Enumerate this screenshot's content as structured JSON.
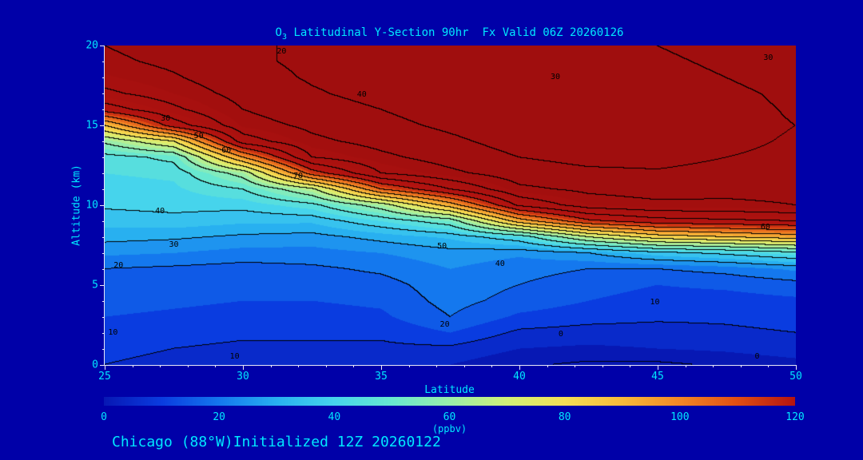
{
  "title": {
    "pre": "O",
    "sub": "3",
    "rest": " Latitudinal Y-Section 90hr  Fx Valid 06Z 20260126"
  },
  "footer": {
    "text": "Chicago (88°W)Initialized 12Z 20260122"
  },
  "axes": {
    "x_label": "Latitude",
    "y_label": "Altitude (km)",
    "x_ticks": [
      {
        "v": 25,
        "label": "25"
      },
      {
        "v": 30,
        "label": "30"
      },
      {
        "v": 35,
        "label": "35"
      },
      {
        "v": 40,
        "label": "40"
      },
      {
        "v": 45,
        "label": "45"
      },
      {
        "v": 50,
        "label": "50"
      }
    ],
    "y_ticks": [
      {
        "v": 0,
        "label": "0"
      },
      {
        "v": 5,
        "label": "5"
      },
      {
        "v": 10,
        "label": "10"
      },
      {
        "v": 15,
        "label": "15"
      },
      {
        "v": 20,
        "label": "20"
      }
    ]
  },
  "colorbar": {
    "min": 0,
    "max": 120,
    "unit": "(ppbv)",
    "ticks": [
      {
        "v": 0,
        "label": "0"
      },
      {
        "v": 20,
        "label": "20"
      },
      {
        "v": 40,
        "label": "40"
      },
      {
        "v": 60,
        "label": "60"
      },
      {
        "v": 80,
        "label": "80"
      },
      {
        "v": 100,
        "label": "100"
      },
      {
        "v": 120,
        "label": "120"
      }
    ]
  },
  "chart_data": {
    "type": "heatmap",
    "title": "O3 Latitudinal Y-Section 90hr Fx Valid 06Z 20260126",
    "xlabel": "Latitude",
    "ylabel": "Altitude (km)",
    "units": "ppbv",
    "x_range": [
      25,
      50
    ],
    "y_range": [
      0,
      20
    ],
    "contour_interval": 10,
    "x_lats": [
      25,
      27.5,
      30,
      32.5,
      35,
      37.5,
      40,
      42.5,
      45,
      47.5,
      50
    ],
    "y_alts": [
      0,
      1,
      2,
      3,
      4,
      5,
      6,
      7,
      8,
      9,
      10,
      11,
      12,
      13,
      14,
      15,
      16,
      17,
      18,
      19,
      20
    ],
    "values": [
      [
        10,
        11,
        13,
        15,
        17,
        18,
        20,
        26,
        32,
        37,
        41,
        43,
        45,
        47,
        62,
        90,
        125,
        138,
        144,
        148,
        150
      ],
      [
        9,
        10,
        12,
        14,
        16,
        17,
        19,
        25,
        31,
        38,
        42,
        44,
        46,
        52,
        80,
        125,
        138,
        145,
        149,
        152,
        154
      ],
      [
        8,
        9,
        11,
        13,
        15,
        16,
        18,
        23,
        29,
        36,
        42,
        50,
        64,
        100,
        135,
        146,
        150,
        153,
        156,
        158,
        158
      ],
      [
        8,
        9,
        11,
        13,
        15,
        17,
        19,
        23,
        28,
        36,
        48,
        68,
        115,
        140,
        148,
        152,
        156,
        159,
        161,
        162,
        162
      ],
      [
        7,
        9,
        11,
        14,
        16,
        18,
        21,
        25,
        32,
        45,
        65,
        110,
        140,
        148,
        153,
        157,
        160,
        163,
        164,
        165,
        164
      ],
      [
        5,
        9,
        15,
        20,
        22,
        23,
        25,
        28,
        36,
        55,
        95,
        130,
        148,
        154,
        158,
        162,
        165,
        167,
        167,
        166,
        165
      ],
      [
        1,
        5,
        9,
        14,
        18,
        20,
        22,
        26,
        45,
        95,
        132,
        148,
        155,
        160,
        164,
        167,
        169,
        170,
        169,
        167,
        166
      ],
      [
        -1,
        4,
        8,
        12,
        15,
        17,
        20,
        30,
        70,
        118,
        145,
        152,
        158,
        163,
        167,
        169,
        170,
        169,
        168,
        166,
        164
      ],
      [
        -1,
        5,
        8,
        11,
        13,
        15,
        20,
        38,
        85,
        126,
        148,
        154,
        159,
        163,
        166,
        167,
        167,
        166,
        164,
        162,
        160
      ],
      [
        1,
        6,
        9,
        11,
        13,
        16,
        22,
        42,
        90,
        128,
        148,
        153,
        157,
        160,
        162,
        163,
        163,
        162,
        160,
        158,
        156
      ],
      [
        3,
        8,
        10,
        12,
        14,
        18,
        26,
        48,
        95,
        130,
        150,
        153,
        156,
        158,
        159,
        160,
        159,
        158,
        156,
        154,
        152
      ]
    ],
    "colormap": [
      [
        0,
        "#0718b4"
      ],
      [
        10,
        "#0a3ce0"
      ],
      [
        20,
        "#1478ee"
      ],
      [
        30,
        "#28b0f0"
      ],
      [
        40,
        "#46d4ec"
      ],
      [
        50,
        "#68e8d0"
      ],
      [
        60,
        "#9aeeaa"
      ],
      [
        70,
        "#d2f078"
      ],
      [
        80,
        "#f4e056"
      ],
      [
        90,
        "#f8ba3a"
      ],
      [
        100,
        "#f28826"
      ],
      [
        110,
        "#e04e14"
      ],
      [
        120,
        "#b41410"
      ],
      [
        150,
        "#a00e0e"
      ]
    ],
    "contour_labels": [
      {
        "t": "20",
        "lat": 31.4,
        "alt": 19.6
      },
      {
        "t": "30",
        "lat": 41.3,
        "alt": 18.0
      },
      {
        "t": "30",
        "lat": 49.0,
        "alt": 19.2
      },
      {
        "t": "40",
        "lat": 34.3,
        "alt": 16.9
      },
      {
        "t": "30",
        "lat": 27.2,
        "alt": 15.4
      },
      {
        "t": "50",
        "lat": 28.4,
        "alt": 14.3
      },
      {
        "t": "60",
        "lat": 29.4,
        "alt": 13.4
      },
      {
        "t": "70",
        "lat": 32.0,
        "alt": 11.8
      },
      {
        "t": "40",
        "lat": 27.0,
        "alt": 9.6
      },
      {
        "t": "30",
        "lat": 27.5,
        "alt": 7.5
      },
      {
        "t": "20",
        "lat": 25.5,
        "alt": 6.2
      },
      {
        "t": "50",
        "lat": 37.2,
        "alt": 7.4
      },
      {
        "t": "40",
        "lat": 39.3,
        "alt": 6.3
      },
      {
        "t": "60",
        "lat": 48.9,
        "alt": 8.6
      },
      {
        "t": "10",
        "lat": 44.9,
        "alt": 3.9
      },
      {
        "t": "20",
        "lat": 37.3,
        "alt": 2.5
      },
      {
        "t": "10",
        "lat": 25.3,
        "alt": 2.0
      },
      {
        "t": "10",
        "lat": 29.7,
        "alt": 0.5
      },
      {
        "t": "0",
        "lat": 41.5,
        "alt": 1.9
      },
      {
        "t": "0",
        "lat": 48.6,
        "alt": 0.5
      }
    ]
  }
}
